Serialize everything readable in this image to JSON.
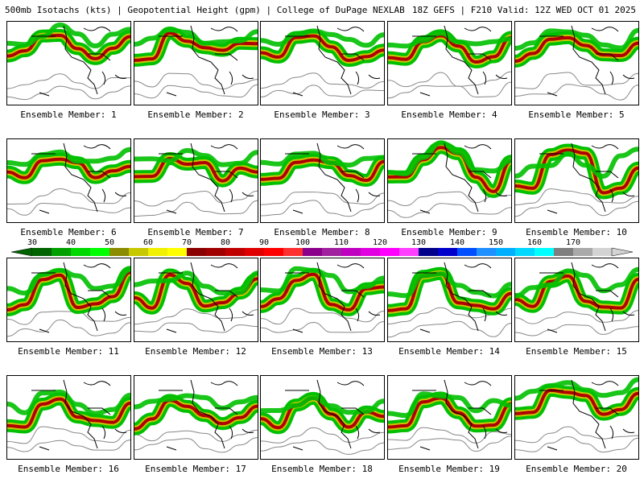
{
  "header": {
    "left": "500mb Isotachs (kts) | Geopotential Height (gpm) | College of DuPage NEXLAB",
    "right": "18Z GEFS | F210 Valid: 12Z WED OCT 01 2025"
  },
  "members": [
    {
      "label": "Ensemble Member: 1"
    },
    {
      "label": "Ensemble Member: 2"
    },
    {
      "label": "Ensemble Member: 3"
    },
    {
      "label": "Ensemble Member: 4"
    },
    {
      "label": "Ensemble Member: 5"
    },
    {
      "label": "Ensemble Member: 6"
    },
    {
      "label": "Ensemble Member: 7"
    },
    {
      "label": "Ensemble Member: 8"
    },
    {
      "label": "Ensemble Member: 9"
    },
    {
      "label": "Ensemble Member: 10"
    },
    {
      "label": "Ensemble Member: 11"
    },
    {
      "label": "Ensemble Member: 12"
    },
    {
      "label": "Ensemble Member: 13"
    },
    {
      "label": "Ensemble Member: 14"
    },
    {
      "label": "Ensemble Member: 15"
    },
    {
      "label": "Ensemble Member: 16"
    },
    {
      "label": "Ensemble Member: 17"
    },
    {
      "label": "Ensemble Member: 18"
    },
    {
      "label": "Ensemble Member: 19"
    },
    {
      "label": "Ensemble Member: 20"
    }
  ],
  "color_scale": {
    "tick_labels": [
      "30",
      "40",
      "50",
      "60",
      "70",
      "80",
      "90",
      "100",
      "110",
      "120",
      "130",
      "140",
      "150",
      "160",
      "170"
    ],
    "colors": [
      "#006400",
      "#00a000",
      "#00d800",
      "#00ff00",
      "#8c8c00",
      "#c8c800",
      "#f0f000",
      "#ffff00",
      "#8b0000",
      "#a00000",
      "#c00000",
      "#e00000",
      "#ff0000",
      "#ff3030",
      "#8b008b",
      "#a020a0",
      "#c000c0",
      "#e000e0",
      "#ff00ff",
      "#ff40ff",
      "#00008b",
      "#0000cd",
      "#0050ff",
      "#1e90ff",
      "#00b0ff",
      "#00d8ff",
      "#00ffff",
      "#7f7f7f",
      "#a9a9a9",
      "#d3d3d3"
    ]
  },
  "legend_colors": {
    "jet_low": "#00c000",
    "jet_mid": "#c8c800",
    "jet_high": "#b00000",
    "height_contour": "#888888",
    "coastline": "#000000"
  }
}
